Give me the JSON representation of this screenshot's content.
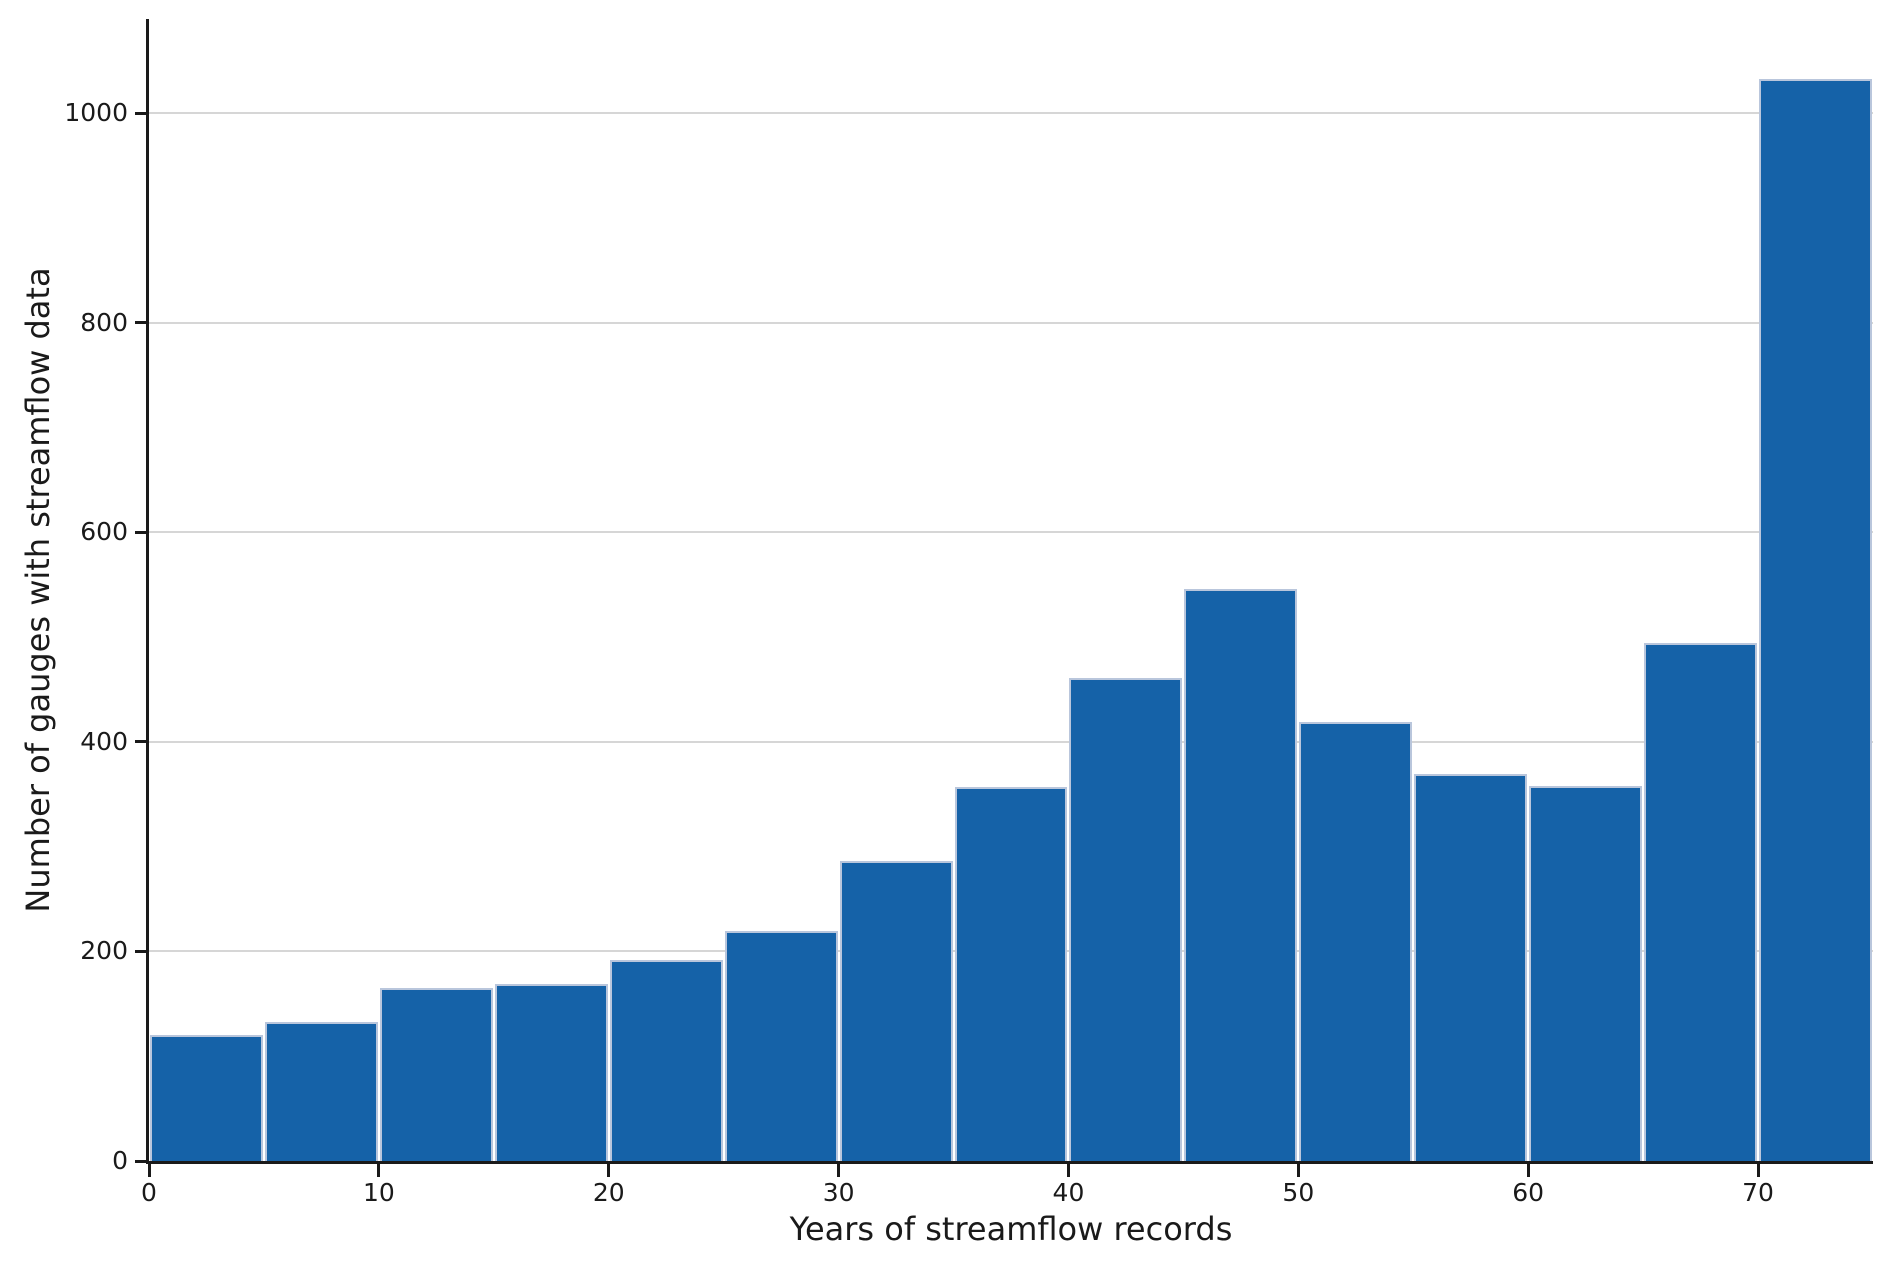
{
  "figure": {
    "background": "#ffffff"
  },
  "chart_data": {
    "type": "bar",
    "title": "",
    "xlabel": "Years of streamflow records",
    "ylabel": "Number of gauges with streamflow data",
    "bin_edges": [
      0,
      5,
      10,
      15,
      20,
      25,
      30,
      35,
      40,
      45,
      50,
      55,
      60,
      65,
      70,
      75
    ],
    "categories": [
      "0-5",
      "5-10",
      "10-15",
      "15-20",
      "20-25",
      "25-30",
      "30-35",
      "35-40",
      "40-45",
      "45-50",
      "50-55",
      "55-60",
      "60-65",
      "65-70",
      "70-75"
    ],
    "values": [
      120,
      133,
      165,
      169,
      192,
      220,
      286,
      357,
      461,
      546,
      419,
      369,
      358,
      494,
      1033
    ],
    "xticks": [
      0,
      10,
      20,
      30,
      40,
      50,
      60,
      70
    ],
    "yticks": [
      0,
      200,
      400,
      600,
      800,
      1000
    ],
    "xlim": [
      0,
      75
    ],
    "ylim": [
      0,
      1090
    ],
    "grid": "horizontal",
    "legend": "none",
    "bar_color": "#1562a8",
    "bar_edge_color": "#b9c6dc",
    "gridline_color": "#d6d6d6",
    "axis_color": "#1a1a1a",
    "text_color": "#1a1a1a"
  }
}
